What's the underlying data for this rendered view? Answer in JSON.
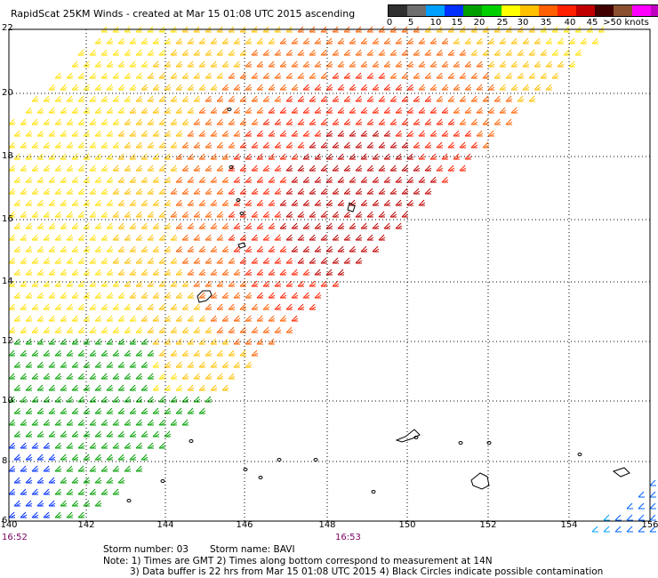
{
  "title": "RapidScat 25KM Winds - created at Mar 15 01:08 UTC 2015 ascending",
  "legend": {
    "colors": [
      "#303030",
      "#6e6e6e",
      "#00a0ff",
      "#0030ff",
      "#00a000",
      "#00d000",
      "#ffff00",
      "#ffc000",
      "#ff6000",
      "#ff2000",
      "#c00000",
      "#400000",
      "#8a5030",
      "#ff00ff",
      "#c000c0",
      "#6000a0"
    ],
    "labels": [
      "0",
      "5",
      "10",
      "15",
      "20",
      "25",
      "30",
      "35",
      "40",
      "45",
      ">50 knots"
    ]
  },
  "map": {
    "lat_labels": [
      "22",
      "20",
      "18",
      "16",
      "14",
      "12",
      "10",
      "8",
      "6"
    ],
    "lon_labels": [
      "140",
      "142",
      "144",
      "146",
      "148",
      "150",
      "152",
      "154",
      "156"
    ],
    "time_labels": [
      "16:52",
      "16:53"
    ]
  },
  "notes": {
    "storm_number": "Storm number: 03",
    "storm_name": "Storm name: BAVI",
    "note1": "Note: 1) Times are GMT  2) Times along bottom correspond to measurement at 14N",
    "note2": "3) Data buffer is 22 hrs from Mar 15 01:08 UTC 2015  4) Black Circles indicate possible contamination"
  }
}
